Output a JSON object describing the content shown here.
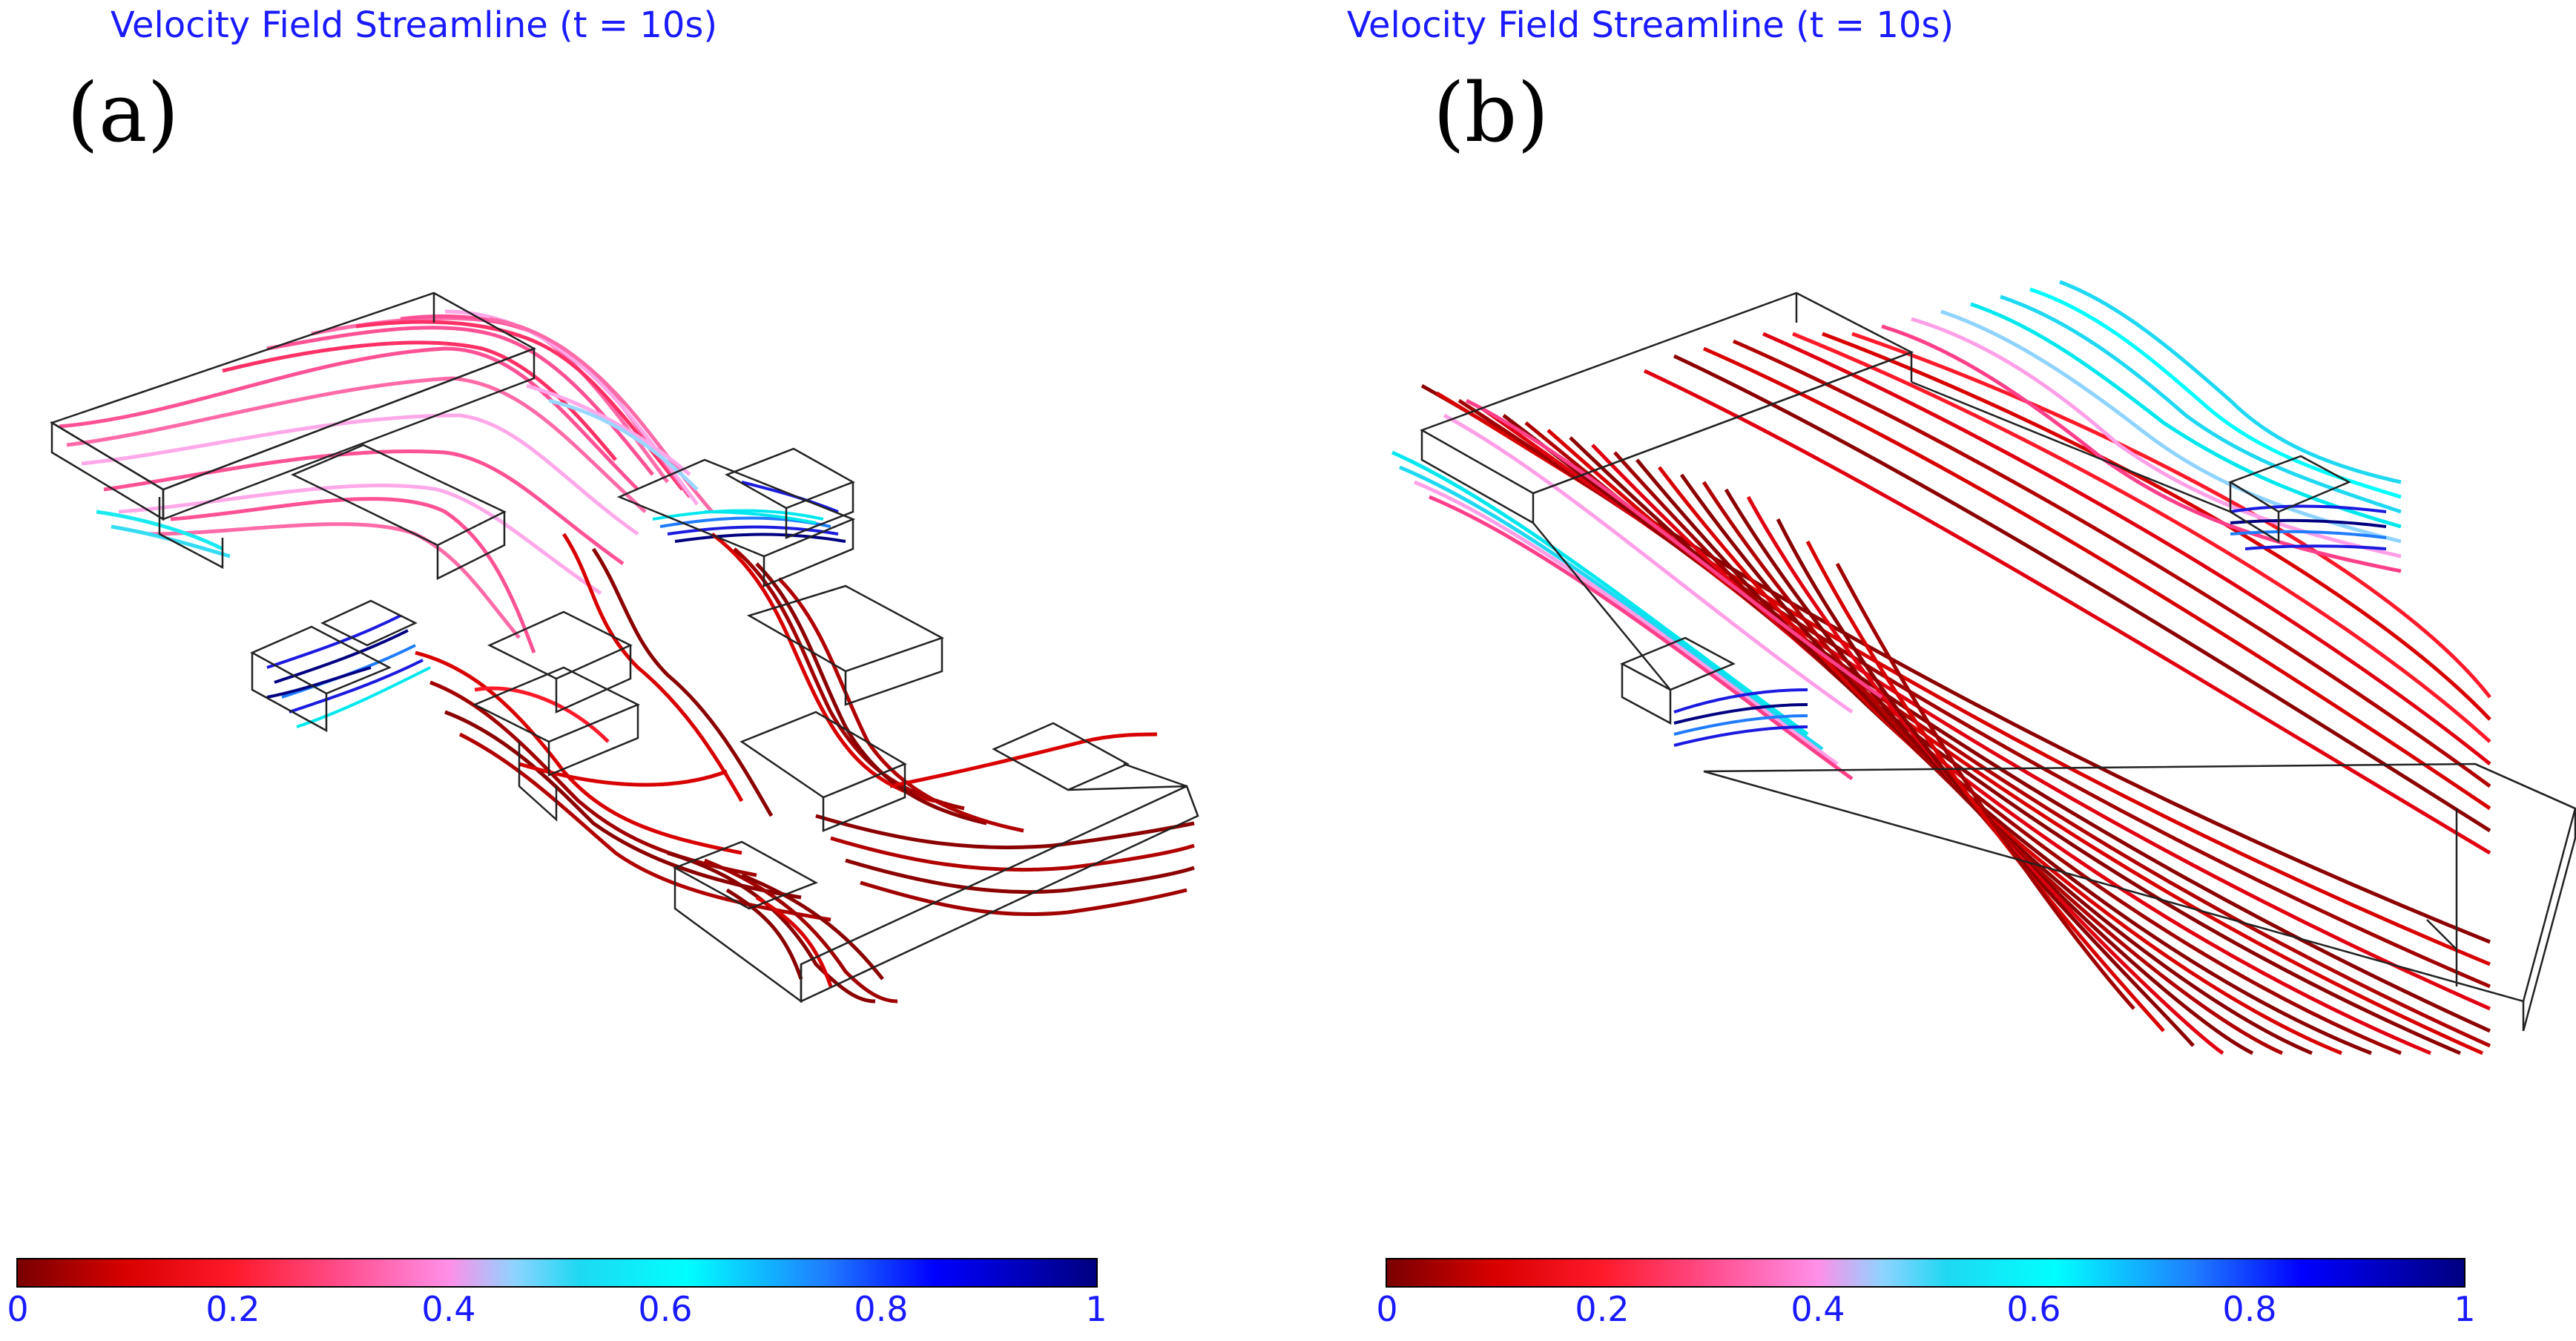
{
  "panels": [
    {
      "letter": "(a)",
      "title": "Velocity Field Streamline (t = 10s)",
      "colorbar": {
        "ticks": [
          "0",
          "0.2",
          "0.4",
          "0.6",
          "0.8",
          "1"
        ],
        "min": 0,
        "max": 1
      }
    },
    {
      "letter": "(b)",
      "title": "Velocity Field Streamline (t = 10s)",
      "colorbar": {
        "ticks": [
          "0",
          "0.2",
          "0.4",
          "0.6",
          "0.8",
          "1"
        ],
        "min": 0,
        "max": 1
      }
    }
  ],
  "colors": {
    "title": "#1a1aff",
    "tick": "#1a1aff",
    "dark_red": "#8b0000",
    "red": "#e00010",
    "pink": "#ff3f8a",
    "light_pink": "#ff9fe8",
    "cyan": "#00e8ee",
    "blue": "#1a1ae0",
    "navy": "#000080",
    "outline": "#222222"
  }
}
